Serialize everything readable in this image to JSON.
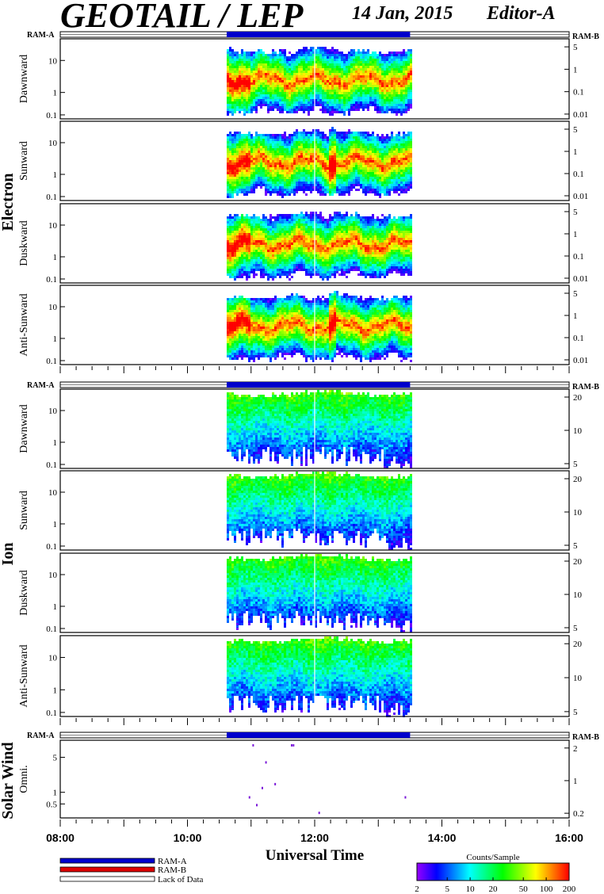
{
  "header": {
    "title": "GEOTAIL / LEP",
    "date": "14 Jan, 2015",
    "editor": "Editor-A"
  },
  "colors": {
    "ram_a": "#0000cc",
    "ram_b": "#dd0000",
    "background": "#ffffff"
  },
  "chart_data": {
    "type": "heatmap",
    "xlabel": "Universal Time",
    "x_ticks": [
      "08:00",
      "10:00",
      "12:00",
      "14:00",
      "16:00"
    ],
    "xlim": [
      "08:00",
      "16:00"
    ],
    "data_interval": [
      "10:37",
      "13:30"
    ],
    "ram_label_left": "RAM-A",
    "ram_label_right": "RAM-B",
    "groups": [
      {
        "name": "Electron",
        "panels": [
          {
            "label": "Dawnward",
            "left_ticks": [
              "10",
              "1",
              "0.1"
            ],
            "right_ticks": [
              "5",
              "1",
              "0.1",
              "0.01"
            ]
          },
          {
            "label": "Sunward",
            "left_ticks": [
              "10",
              "1",
              "0.1"
            ],
            "right_ticks": [
              "5",
              "1",
              "0.1",
              "0.01"
            ]
          },
          {
            "label": "Duskward",
            "left_ticks": [
              "10",
              "1",
              "0.1"
            ],
            "right_ticks": [
              "5",
              "1",
              "0.1",
              "0.01"
            ]
          },
          {
            "label": "Anti-Sunward",
            "left_ticks": [
              "10",
              "1",
              "0.1"
            ],
            "right_ticks": [
              "5",
              "1",
              "0.1",
              "0.01"
            ]
          }
        ]
      },
      {
        "name": "Ion",
        "panels": [
          {
            "label": "Dawnward",
            "left_ticks": [
              "10",
              "1",
              "0.1"
            ],
            "right_ticks": [
              "20",
              "10",
              "5"
            ]
          },
          {
            "label": "Sunward",
            "left_ticks": [
              "10",
              "1",
              "0.1"
            ],
            "right_ticks": [
              "20",
              "10",
              "5"
            ]
          },
          {
            "label": "Duskward",
            "left_ticks": [
              "10",
              "1",
              "0.1"
            ],
            "right_ticks": [
              "20",
              "10",
              "5"
            ]
          },
          {
            "label": "Anti-Sunward",
            "left_ticks": [
              "10",
              "1",
              "0.1"
            ],
            "right_ticks": [
              "20",
              "10",
              "5"
            ]
          }
        ]
      },
      {
        "name": "Solar Wind",
        "panels": [
          {
            "label": "Omni.",
            "left_ticks": [
              "5",
              "1",
              "0.5"
            ],
            "right_ticks": [
              "2",
              "1",
              "0.2"
            ]
          }
        ]
      }
    ],
    "legend": {
      "items": [
        "RAM-A",
        "RAM-B",
        "Lack of Data"
      ]
    },
    "colorbar": {
      "title": "Counts/Sample",
      "ticks": [
        "2",
        "5",
        "10",
        "20",
        "50",
        "100",
        "200"
      ],
      "range": [
        2,
        200
      ],
      "scale": "log"
    }
  }
}
